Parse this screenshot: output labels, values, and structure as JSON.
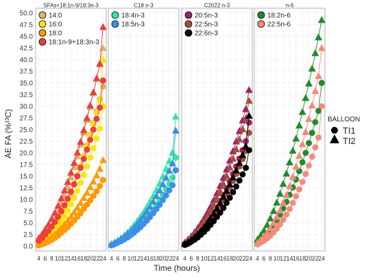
{
  "chart_data": {
    "type": "scatter",
    "xlabel": "Time (hours)",
    "ylabel": "AE FA (%¹³C)",
    "xlim": [
      3,
      25
    ],
    "ylim": [
      -1,
      51
    ],
    "x_ticks": [
      "4",
      "6",
      "8",
      "10",
      "12",
      "14",
      "16",
      "18",
      "20",
      "22",
      "24"
    ],
    "y_ticks": [
      "0.0",
      "2.5",
      "5.0",
      "7.5",
      "10.0",
      "12.5",
      "15.0",
      "17.5",
      "20.0",
      "22.5",
      "25.0",
      "27.5",
      "30.0",
      "32.5",
      "35.0",
      "37.5",
      "40.0",
      "42.5",
      "45.0",
      "47.5",
      "50.0"
    ],
    "x": [
      4,
      5,
      6,
      7,
      8,
      9,
      10,
      11,
      12,
      13,
      14,
      15,
      16,
      17,
      18,
      19,
      20,
      21,
      22,
      23,
      24
    ],
    "grid": true,
    "shape_legend": {
      "title": "BALLOON",
      "entries": [
        {
          "label": "TI1",
          "shape": "circle"
        },
        {
          "label": "TI2",
          "shape": "triangle"
        }
      ]
    },
    "panels": [
      {
        "title": "SFAs+18:1n-9/18:3n-3",
        "series": [
          {
            "name": "14:0",
            "color": "#d9b46a",
            "TI1": [
              0.8,
              1.3,
              1.9,
              2.6,
              3.4,
              4.4,
              5.5,
              6.8,
              8.2,
              9.7,
              11.4,
              13.2,
              15.1,
              17.2,
              19.3,
              21.6,
              23.9,
              26.4,
              28.9,
              31.5,
              34.2
            ],
            "TI2": [
              1.0,
              1.7,
              2.5,
              3.5,
              4.6,
              5.9,
              7.4,
              9.0,
              10.8,
              12.7,
              14.8,
              17.0,
              19.3,
              21.8,
              24.4,
              27.1,
              29.9,
              32.9,
              36.0,
              39.2,
              42.5
            ]
          },
          {
            "name": "16:0",
            "color": "#ffe600",
            "TI1": [
              0.5,
              0.9,
              1.4,
              1.9,
              2.6,
              3.4,
              4.3,
              5.3,
              6.4,
              7.6,
              9.0,
              10.4,
              11.9,
              13.6,
              15.3,
              17.1,
              19.0,
              21.0,
              23.1,
              25.2,
              30.0
            ],
            "TI2": [
              0.7,
              1.2,
              1.8,
              2.6,
              3.5,
              4.5,
              5.7,
              7.0,
              8.5,
              10.0,
              11.7,
              13.5,
              15.4,
              17.4,
              19.5,
              21.7,
              24.0,
              26.4,
              28.9,
              31.5,
              40.0
            ]
          },
          {
            "name": "18:0",
            "color": "#ff9a00",
            "TI1": [
              0.2,
              0.4,
              0.7,
              1.0,
              1.4,
              1.8,
              2.3,
              2.9,
              3.5,
              4.1,
              4.8,
              5.5,
              6.3,
              7.1,
              8.0,
              8.9,
              9.8,
              10.8,
              11.8,
              12.9,
              14.2
            ],
            "TI2": [
              0.4,
              0.7,
              1.1,
              1.5,
              2.0,
              2.6,
              3.2,
              3.9,
              4.7,
              5.5,
              6.4,
              7.3,
              8.3,
              9.3,
              10.4,
              11.5,
              12.7,
              13.9,
              15.2,
              16.6,
              18.5
            ]
          },
          {
            "name": "18:1n-9+18:3n-3",
            "color": "#f03c3c",
            "TI1": [
              1.2,
              1.8,
              2.5,
              3.3,
              4.2,
              5.2,
              6.3,
              7.5,
              8.8,
              10.2,
              11.7,
              13.3,
              15.0,
              16.8,
              18.7,
              20.7,
              22.8,
              25.0,
              27.3,
              29.7,
              35.5
            ],
            "TI2": [
              1.8,
              2.6,
              3.6,
              4.7,
              5.9,
              7.2,
              8.7,
              10.3,
              12.0,
              13.8,
              15.8,
              17.9,
              20.1,
              22.4,
              24.9,
              27.5,
              30.2,
              33.0,
              36.0,
              39.1,
              47.0
            ]
          }
        ]
      },
      {
        "title": "C18 n-3",
        "series": [
          {
            "name": "18:4n-3",
            "color": "#33e6a0",
            "TI1": [
              0.3,
              0.6,
              0.9,
              1.3,
              1.7,
              2.2,
              2.7,
              3.3,
              3.9,
              4.6,
              5.3,
              6.1,
              7.0,
              7.9,
              8.9,
              9.9,
              11.0,
              12.2,
              13.4,
              14.7,
              19.0
            ],
            "TI2": [
              0.5,
              0.9,
              1.3,
              1.8,
              2.4,
              3.0,
              3.7,
              4.5,
              5.4,
              6.3,
              7.3,
              8.4,
              9.6,
              10.8,
              12.1,
              13.5,
              15.0,
              16.6,
              18.3,
              20.1,
              27.8
            ]
          },
          {
            "name": "18:5n-3",
            "color": "#3d8ee6",
            "TI1": [
              0.2,
              0.5,
              0.8,
              1.1,
              1.5,
              1.9,
              2.4,
              2.9,
              3.5,
              4.1,
              4.8,
              5.5,
              6.3,
              7.1,
              8.0,
              8.9,
              9.9,
              10.9,
              12.0,
              13.1,
              16.3
            ],
            "TI2": [
              0.4,
              0.8,
              1.2,
              1.6,
              2.1,
              2.7,
              3.3,
              4.0,
              4.8,
              5.6,
              6.5,
              7.5,
              8.5,
              9.6,
              10.8,
              12.0,
              13.3,
              14.7,
              16.2,
              17.8,
              24.8
            ]
          }
        ]
      },
      {
        "title": "C2022 n-3",
        "series": [
          {
            "name": "20:5n-3",
            "color": "#a31c66",
            "TI1": [
              0.6,
              1.0,
              1.5,
              2.0,
              2.7,
              3.4,
              4.2,
              5.1,
              6.1,
              7.2,
              8.4,
              9.7,
              11.0,
              12.4,
              13.9,
              15.5,
              17.1,
              18.8,
              20.6,
              22.5,
              26.5
            ],
            "TI2": [
              0.9,
              1.5,
              2.2,
              3.0,
              3.9,
              4.9,
              6.0,
              7.2,
              8.5,
              9.9,
              11.4,
              13.0,
              14.7,
              16.5,
              18.4,
              20.4,
              22.5,
              24.7,
              27.0,
              29.4,
              33.5
            ]
          },
          {
            "name": "22:5n-3",
            "color": "#a34f3a",
            "TI1": [
              0.5,
              0.9,
              1.3,
              1.8,
              2.4,
              3.1,
              3.8,
              4.6,
              5.5,
              6.5,
              7.6,
              8.7,
              9.9,
              11.2,
              12.6,
              14.0,
              15.5,
              17.1,
              18.7,
              20.4,
              24.3
            ],
            "TI2": [
              0.8,
              1.3,
              1.9,
              2.6,
              3.4,
              4.3,
              5.3,
              6.4,
              7.6,
              8.9,
              10.3,
              11.8,
              13.4,
              15.1,
              16.9,
              18.8,
              20.8,
              22.9,
              25.1,
              27.4,
              31.2
            ]
          },
          {
            "name": "22:6n-3",
            "color": "#000000",
            "TI1": [
              0.3,
              0.6,
              1.0,
              1.4,
              1.9,
              2.5,
              3.1,
              3.8,
              4.6,
              5.4,
              6.3,
              7.2,
              8.2,
              9.3,
              10.4,
              11.6,
              12.8,
              14.1,
              15.4,
              16.8,
              20.6
            ],
            "TI2": [
              0.5,
              0.9,
              1.4,
              2.0,
              2.6,
              3.3,
              4.1,
              5.0,
              6.0,
              7.0,
              8.1,
              9.3,
              10.6,
              11.9,
              13.3,
              14.8,
              16.3,
              17.9,
              19.6,
              21.4,
              28.0
            ]
          }
        ]
      },
      {
        "title": "n-6",
        "series": [
          {
            "name": "18:2n-6",
            "color": "#1f8c2a",
            "TI1": [
              0.8,
              1.3,
              1.9,
              2.6,
              3.5,
              4.5,
              5.6,
              6.8,
              8.1,
              9.5,
              11.0,
              12.6,
              14.3,
              16.1,
              18.0,
              20.0,
              22.1,
              24.3,
              26.6,
              29.0,
              35.0
            ],
            "TI2": [
              1.5,
              2.4,
              3.4,
              4.6,
              6.0,
              7.6,
              9.4,
              11.3,
              13.4,
              15.6,
              18.0,
              20.5,
              23.1,
              25.9,
              28.8,
              31.8,
              34.9,
              38.1,
              41.4,
              44.8,
              48.5
            ]
          },
          {
            "name": "22:5n-6",
            "color": "#f58a7a",
            "TI1": [
              0.4,
              0.8,
              1.2,
              1.7,
              2.3,
              3.0,
              3.8,
              4.7,
              5.7,
              6.8,
              8.0,
              9.3,
              10.7,
              12.2,
              13.8,
              15.5,
              17.3,
              19.2,
              21.2,
              23.3,
              30.0
            ],
            "TI2": [
              0.8,
              1.4,
              2.1,
              2.9,
              3.9,
              5.0,
              6.3,
              7.7,
              9.3,
              11.0,
              12.9,
              14.9,
              17.1,
              19.4,
              21.9,
              24.5,
              27.3,
              30.2,
              33.3,
              36.5,
              42.5
            ]
          }
        ]
      }
    ]
  }
}
